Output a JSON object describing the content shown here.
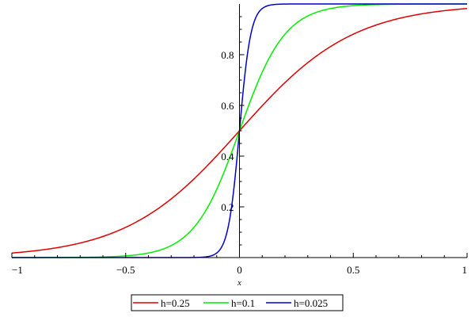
{
  "chart_data": {
    "type": "line",
    "title": "",
    "xlabel": "x",
    "ylabel": "",
    "xlim": [
      -1,
      1
    ],
    "ylim": [
      0,
      1
    ],
    "x_ticks": [
      -1,
      -0.5,
      0,
      0.5,
      1
    ],
    "x_tick_labels": [
      "−1",
      "−0.5",
      "0",
      "0.5",
      "1"
    ],
    "y_ticks": [
      0.2,
      0.4,
      0.6,
      0.8
    ],
    "y_tick_labels": [
      "0.2",
      "0.4",
      "0.6",
      "0.8"
    ],
    "legend_position": "bottom-center",
    "series": [
      {
        "name": "h=0.25",
        "color": "#dd0000",
        "h": 0.25
      },
      {
        "name": "h=0.1",
        "color": "#00ee00",
        "h": 0.1
      },
      {
        "name": "h=0.025",
        "color": "#0000cc",
        "h": 0.025
      }
    ]
  }
}
